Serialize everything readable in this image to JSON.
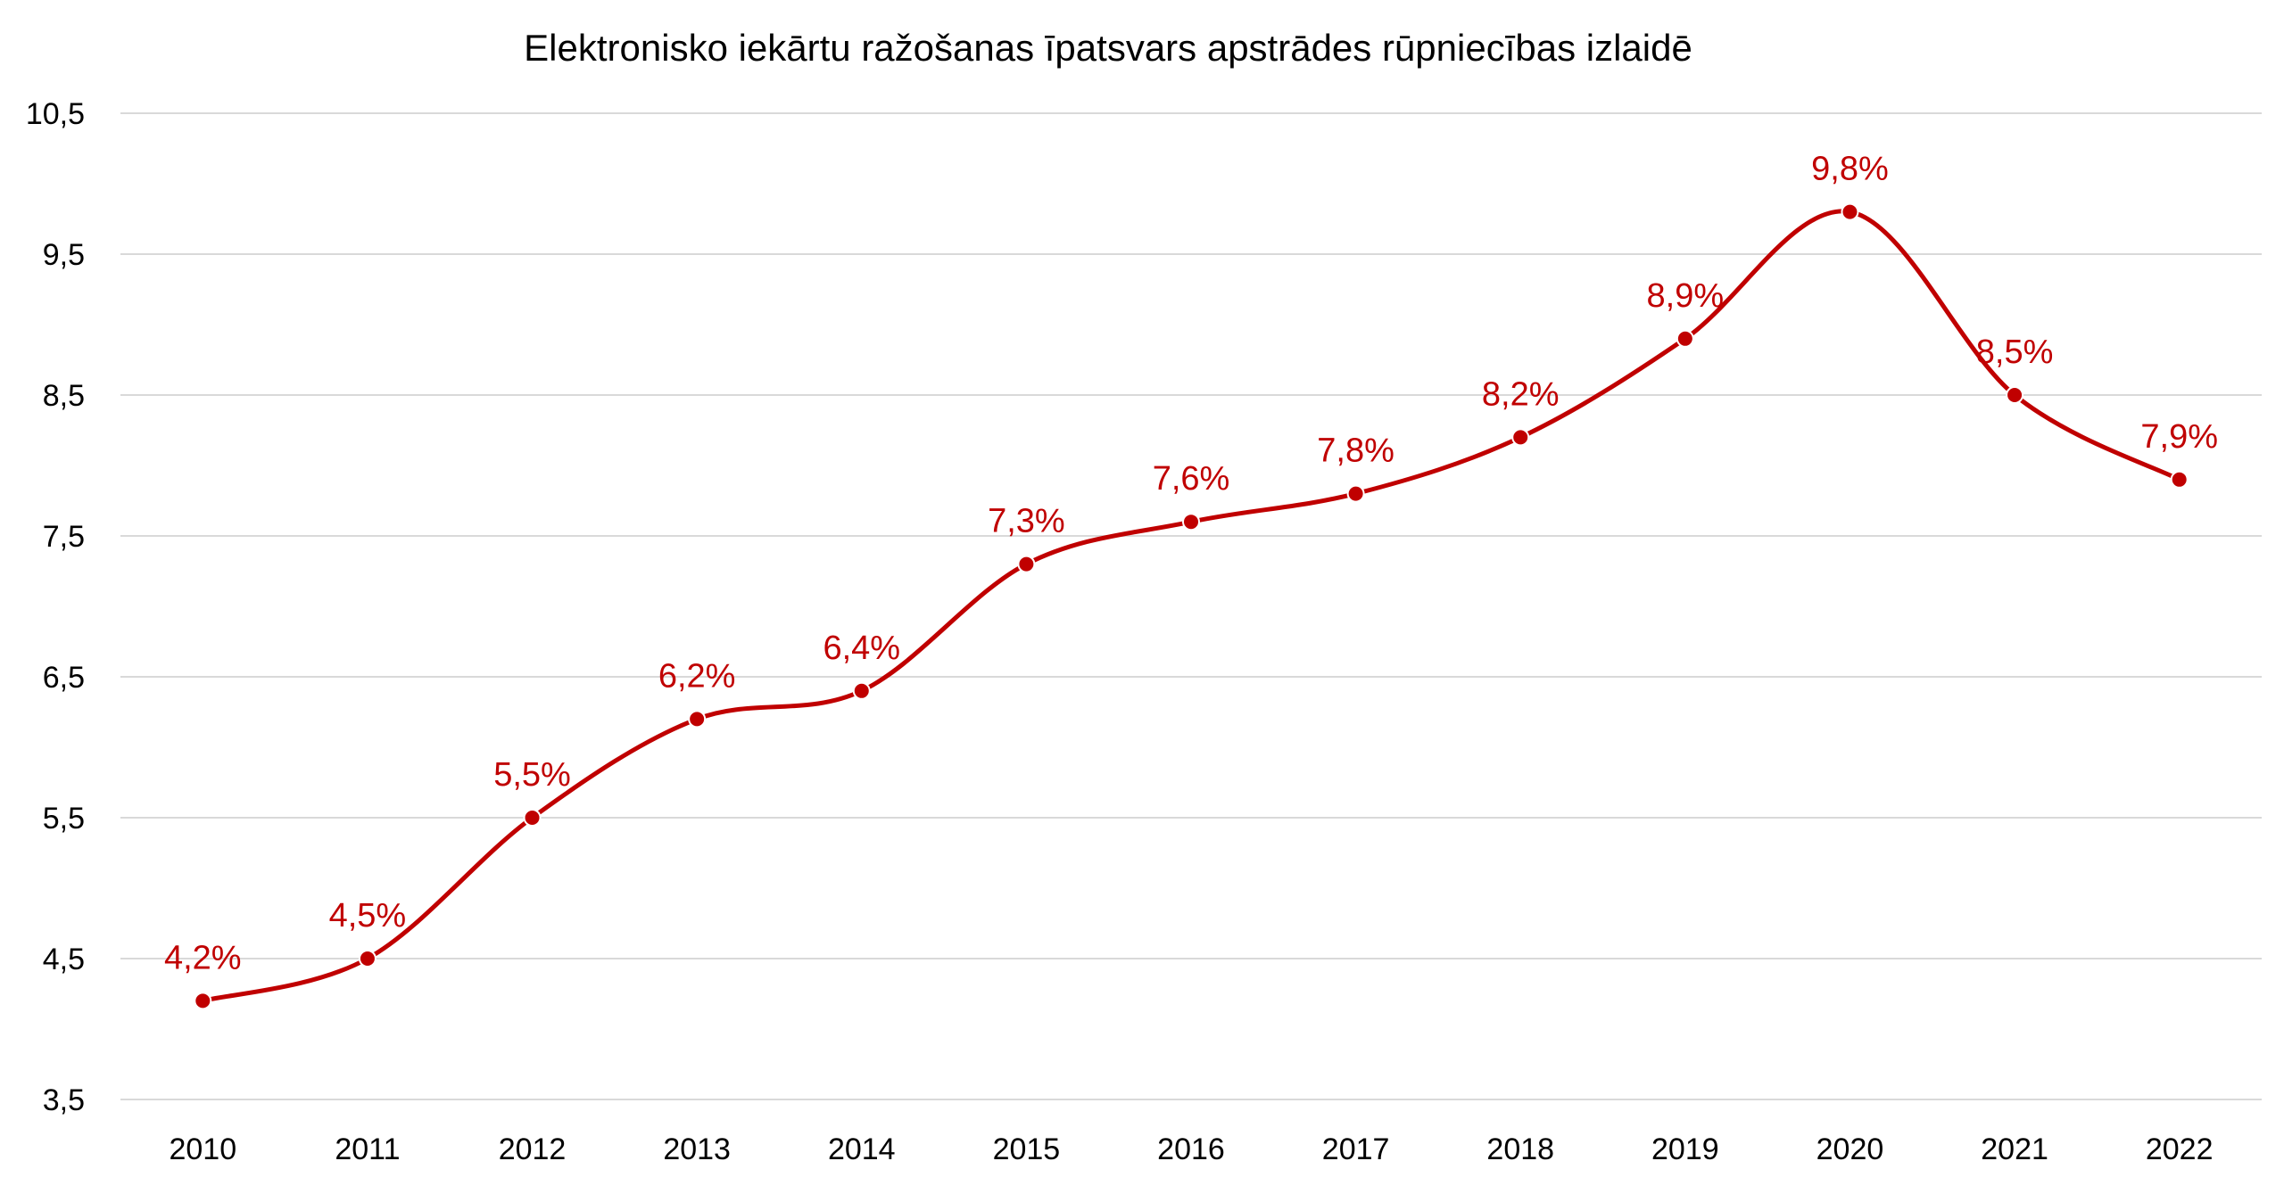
{
  "chart_data": {
    "type": "line",
    "title": "Elektronisko iekārtu ražošanas īpatsvars apstrādes rūpniecības izlaidē",
    "xlabel": "",
    "ylabel": "",
    "categories": [
      "2010",
      "2011",
      "2012",
      "2013",
      "2014",
      "2015",
      "2016",
      "2017",
      "2018",
      "2019",
      "2020",
      "2021",
      "2022"
    ],
    "series": [
      {
        "values": [
          4.2,
          4.5,
          5.5,
          6.2,
          6.4,
          7.3,
          7.6,
          7.8,
          8.2,
          8.9,
          9.8,
          8.5,
          7.9
        ],
        "data_labels": [
          "4,2%",
          "4,5%",
          "5,5%",
          "6,2%",
          "6,4%",
          "7,3%",
          "7,6%",
          "7,8%",
          "8,2%",
          "8,9%",
          "9,8%",
          "8,5%",
          "7,9%"
        ],
        "color": "#C00000",
        "smooth": true,
        "markers": true
      }
    ],
    "ylim": [
      3.5,
      10.5
    ],
    "yticks": [
      3.5,
      4.5,
      5.5,
      6.5,
      7.5,
      8.5,
      9.5,
      10.5
    ],
    "ytick_labels": [
      "3,5",
      "4,5",
      "5,5",
      "6,5",
      "7,5",
      "8,5",
      "9,5",
      "10,5"
    ],
    "grid": true,
    "legend": "none",
    "colors": {
      "series": "#C00000",
      "grid": "#d9d9d9",
      "text": "#000000"
    }
  }
}
